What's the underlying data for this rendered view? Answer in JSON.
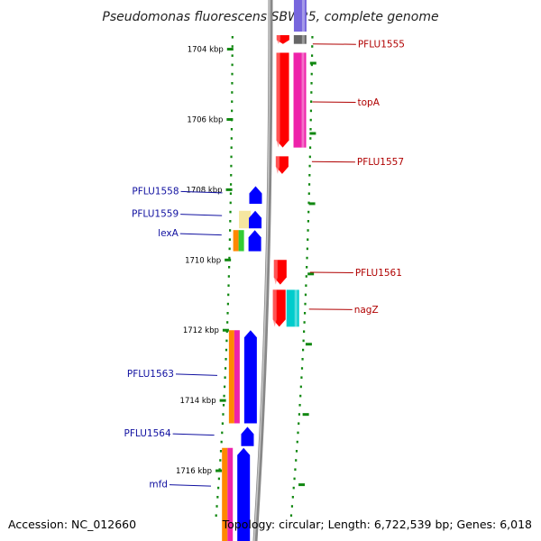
{
  "title": "Pseudomonas fluorescens SBW25, complete genome",
  "footer": {
    "accession": "Accession: NC_012660",
    "topology": "Topology: circular; Length: 6,722,539 bp; Genes: 6,018"
  },
  "scale": {
    "start_kbp": 1702.6,
    "end_kbp": 1718.0,
    "labels": [
      "1704 kbp",
      "1706 kbp",
      "1708 kbp",
      "1710 kbp",
      "1712 kbp",
      "1714 kbp",
      "1716 kbp"
    ],
    "label_positions_kbp": [
      1704,
      1706,
      1708,
      1710,
      1712,
      1714,
      1716
    ]
  },
  "genes_right": [
    {
      "name": "PFLU1555",
      "start_kbp": 1703.6,
      "end_kbp": 1703.85,
      "strand": "+",
      "color": "#ff0000",
      "label_kbp": 1703.85
    },
    {
      "name": "topA",
      "start_kbp": 1704.1,
      "end_kbp": 1706.8,
      "strand": "+",
      "color": "#ff0000",
      "label_kbp": 1705.5
    },
    {
      "name": "PFLU1557",
      "start_kbp": 1707.05,
      "end_kbp": 1707.55,
      "strand": "+",
      "color": "#ff0000",
      "label_kbp": 1707.2
    },
    {
      "name": "PFLU1561",
      "start_kbp": 1710.0,
      "end_kbp": 1710.7,
      "strand": "+",
      "color": "#ff0000",
      "label_kbp": 1710.35
    },
    {
      "name": "nagZ",
      "start_kbp": 1710.85,
      "end_kbp": 1711.9,
      "strand": "+",
      "color": "#ff0000",
      "label_kbp": 1711.4
    }
  ],
  "genes_left": [
    {
      "name": "PFLU1558",
      "start_kbp": 1707.9,
      "end_kbp": 1708.4,
      "strand": "-",
      "color": "#0000ff",
      "label_kbp": 1708.05
    },
    {
      "name": "PFLU1559",
      "start_kbp": 1708.6,
      "end_kbp": 1709.1,
      "strand": "-",
      "color": "#0000ff",
      "label_kbp": 1708.7
    },
    {
      "name": "lexA",
      "start_kbp": 1709.15,
      "end_kbp": 1709.75,
      "strand": "-",
      "color": "#0000ff",
      "label_kbp": 1709.25
    },
    {
      "name": "PFLU1563",
      "start_kbp": 1712.0,
      "end_kbp": 1714.65,
      "strand": "-",
      "color": "#0000ff",
      "label_kbp": 1713.25
    },
    {
      "name": "PFLU1564",
      "start_kbp": 1714.75,
      "end_kbp": 1715.3,
      "strand": "-",
      "color": "#0000ff",
      "label_kbp": 1714.95
    },
    {
      "name": "mfd",
      "start_kbp": 1715.35,
      "end_kbp": 1718.0,
      "strand": "-",
      "color": "#0000ff",
      "label_kbp": 1716.4
    }
  ],
  "features_right": [
    {
      "start_kbp": 1702.6,
      "end_kbp": 1703.5,
      "color": "#7766dd"
    },
    {
      "start_kbp": 1703.6,
      "end_kbp": 1703.85,
      "color": "#666666"
    },
    {
      "start_kbp": 1704.1,
      "end_kbp": 1706.8,
      "color": "#ee22aa"
    },
    {
      "start_kbp": 1710.85,
      "end_kbp": 1711.9,
      "color": "#00cccc"
    }
  ],
  "features_left": [
    {
      "start_kbp": 1708.6,
      "end_kbp": 1709.1,
      "color": "#f5e6a0"
    },
    {
      "start_kbp": 1709.15,
      "end_kbp": 1709.75,
      "color": "#ff8800"
    },
    {
      "start_kbp": 1709.15,
      "end_kbp": 1709.75,
      "color": "#33cc33"
    },
    {
      "start_kbp": 1712.0,
      "end_kbp": 1714.65,
      "color": "#ff8800"
    },
    {
      "start_kbp": 1712.0,
      "end_kbp": 1714.65,
      "color": "#ee22aa"
    },
    {
      "start_kbp": 1715.35,
      "end_kbp": 1718.0,
      "color": "#ee22aa"
    },
    {
      "start_kbp": 1715.35,
      "end_kbp": 1718.0,
      "color": "#ff8800"
    }
  ],
  "colors": {
    "backbone": "#888888",
    "ticks": "#118811",
    "forward_label": "#b00000",
    "reverse_label": "#1010a0"
  }
}
